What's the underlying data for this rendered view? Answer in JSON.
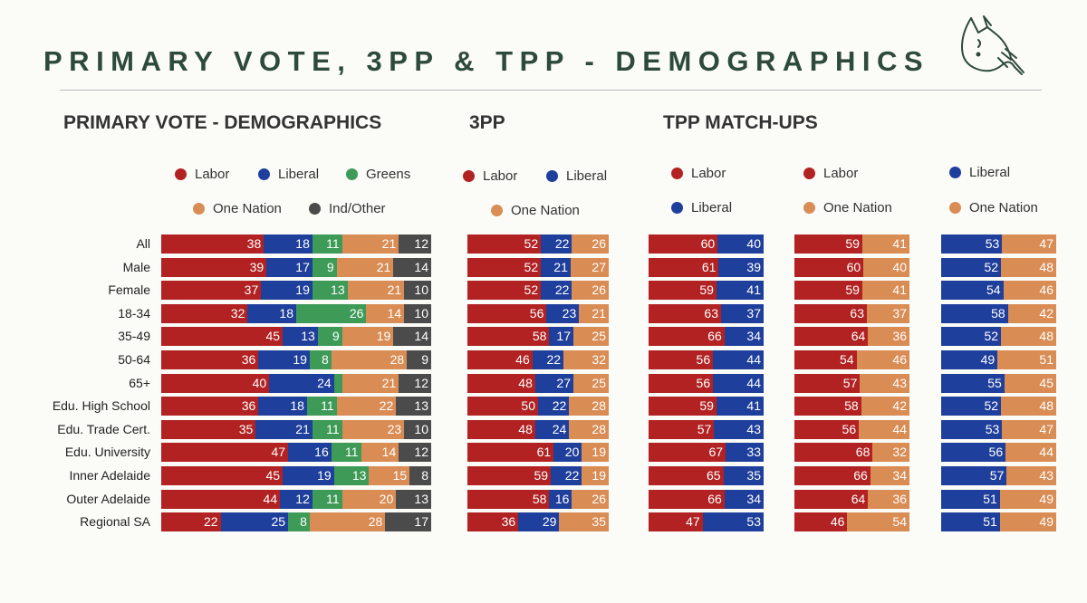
{
  "page_title": "PRIMARY VOTE, 3PP & TPP - DEMOGRAPHICS",
  "colors": {
    "Labor": "#b22222",
    "Liberal": "#1f3f9c",
    "Greens": "#3e9a57",
    "One Nation": "#d98c54",
    "Ind/Other": "#4b4b4b"
  },
  "rows": [
    "All",
    "Male",
    "Female",
    "18-34",
    "35-49",
    "50-64",
    "65+",
    "Edu. High School",
    "Edu. Trade Cert.",
    "Edu. University",
    "Inner Adelaide",
    "Outer Adelaide",
    "Regional SA"
  ],
  "chart_data": [
    {
      "type": "bar",
      "title": "PRIMARY VOTE - DEMOGRAPHICS",
      "stacked": true,
      "orientation": "horizontal",
      "categories": [
        "All",
        "Male",
        "Female",
        "18-34",
        "35-49",
        "50-64",
        "65+",
        "Edu. High School",
        "Edu. Trade Cert.",
        "Edu. University",
        "Inner Adelaide",
        "Outer Adelaide",
        "Regional SA"
      ],
      "series": [
        {
          "name": "Labor",
          "values": [
            38,
            39,
            37,
            32,
            45,
            36,
            40,
            36,
            35,
            47,
            45,
            44,
            22
          ]
        },
        {
          "name": "Liberal",
          "values": [
            18,
            17,
            19,
            18,
            13,
            19,
            24,
            18,
            21,
            16,
            19,
            12,
            25
          ]
        },
        {
          "name": "Greens",
          "values": [
            11,
            9,
            13,
            26,
            9,
            8,
            3,
            11,
            11,
            11,
            13,
            11,
            8
          ]
        },
        {
          "name": "One Nation",
          "values": [
            21,
            21,
            21,
            14,
            19,
            28,
            21,
            22,
            23,
            14,
            15,
            20,
            28
          ]
        },
        {
          "name": "Ind/Other",
          "values": [
            12,
            14,
            10,
            10,
            14,
            9,
            12,
            13,
            10,
            12,
            8,
            13,
            17
          ]
        }
      ],
      "hidden_labels": {
        "Greens": [
          6
        ]
      },
      "legend_rows": [
        [
          "Labor",
          "Liberal",
          "Greens"
        ],
        [
          "One Nation",
          "Ind/Other"
        ]
      ]
    },
    {
      "type": "bar",
      "title": "3PP",
      "stacked": true,
      "orientation": "horizontal",
      "categories": [
        "All",
        "Male",
        "Female",
        "18-34",
        "35-49",
        "50-64",
        "65+",
        "Edu. High School",
        "Edu. Trade Cert.",
        "Edu. University",
        "Inner Adelaide",
        "Outer Adelaide",
        "Regional SA"
      ],
      "series": [
        {
          "name": "Labor",
          "values": [
            52,
            52,
            52,
            56,
            58,
            46,
            48,
            50,
            48,
            61,
            59,
            58,
            36
          ]
        },
        {
          "name": "Liberal",
          "values": [
            22,
            21,
            22,
            23,
            17,
            22,
            27,
            22,
            24,
            20,
            22,
            16,
            29
          ]
        },
        {
          "name": "One Nation",
          "values": [
            26,
            27,
            26,
            21,
            25,
            32,
            25,
            28,
            28,
            19,
            19,
            26,
            35
          ]
        }
      ],
      "legend_rows": [
        [
          "Labor",
          "Liberal"
        ],
        [
          "One Nation"
        ]
      ]
    },
    {
      "type": "bar",
      "title": "TPP MATCH-UPS",
      "stacked": true,
      "orientation": "horizontal",
      "categories": [
        "All",
        "Male",
        "Female",
        "18-34",
        "35-49",
        "50-64",
        "65+",
        "Edu. High School",
        "Edu. Trade Cert.",
        "Edu. University",
        "Inner Adelaide",
        "Outer Adelaide",
        "Regional SA"
      ],
      "series": [
        {
          "name": "Labor",
          "values": [
            60,
            61,
            59,
            63,
            66,
            56,
            56,
            59,
            57,
            67,
            65,
            66,
            47
          ]
        },
        {
          "name": "Liberal",
          "values": [
            40,
            39,
            41,
            37,
            34,
            44,
            44,
            41,
            43,
            33,
            35,
            34,
            53
          ]
        }
      ],
      "legend_rows": [
        [
          "Labor"
        ],
        [
          "Liberal"
        ]
      ]
    },
    {
      "type": "bar",
      "stacked": true,
      "orientation": "horizontal",
      "categories": [
        "All",
        "Male",
        "Female",
        "18-34",
        "35-49",
        "50-64",
        "65+",
        "Edu. High School",
        "Edu. Trade Cert.",
        "Edu. University",
        "Inner Adelaide",
        "Outer Adelaide",
        "Regional SA"
      ],
      "series": [
        {
          "name": "Labor",
          "values": [
            59,
            60,
            59,
            63,
            64,
            54,
            57,
            58,
            56,
            68,
            66,
            64,
            46
          ]
        },
        {
          "name": "One Nation",
          "values": [
            41,
            40,
            41,
            37,
            36,
            46,
            43,
            42,
            44,
            32,
            34,
            36,
            54
          ]
        }
      ],
      "legend_rows": [
        [
          "Labor"
        ],
        [
          "One Nation"
        ]
      ]
    },
    {
      "type": "bar",
      "stacked": true,
      "orientation": "horizontal",
      "categories": [
        "All",
        "Male",
        "Female",
        "18-34",
        "35-49",
        "50-64",
        "65+",
        "Edu. High School",
        "Edu. Trade Cert.",
        "Edu. University",
        "Inner Adelaide",
        "Outer Adelaide",
        "Regional SA"
      ],
      "series": [
        {
          "name": "Liberal",
          "values": [
            53,
            52,
            54,
            58,
            52,
            49,
            55,
            52,
            53,
            56,
            57,
            51,
            51
          ]
        },
        {
          "name": "One Nation",
          "values": [
            47,
            48,
            46,
            42,
            48,
            51,
            45,
            48,
            47,
            44,
            43,
            49,
            49
          ]
        }
      ],
      "legend_rows": [
        [
          "Liberal"
        ],
        [
          "One Nation"
        ]
      ]
    }
  ]
}
